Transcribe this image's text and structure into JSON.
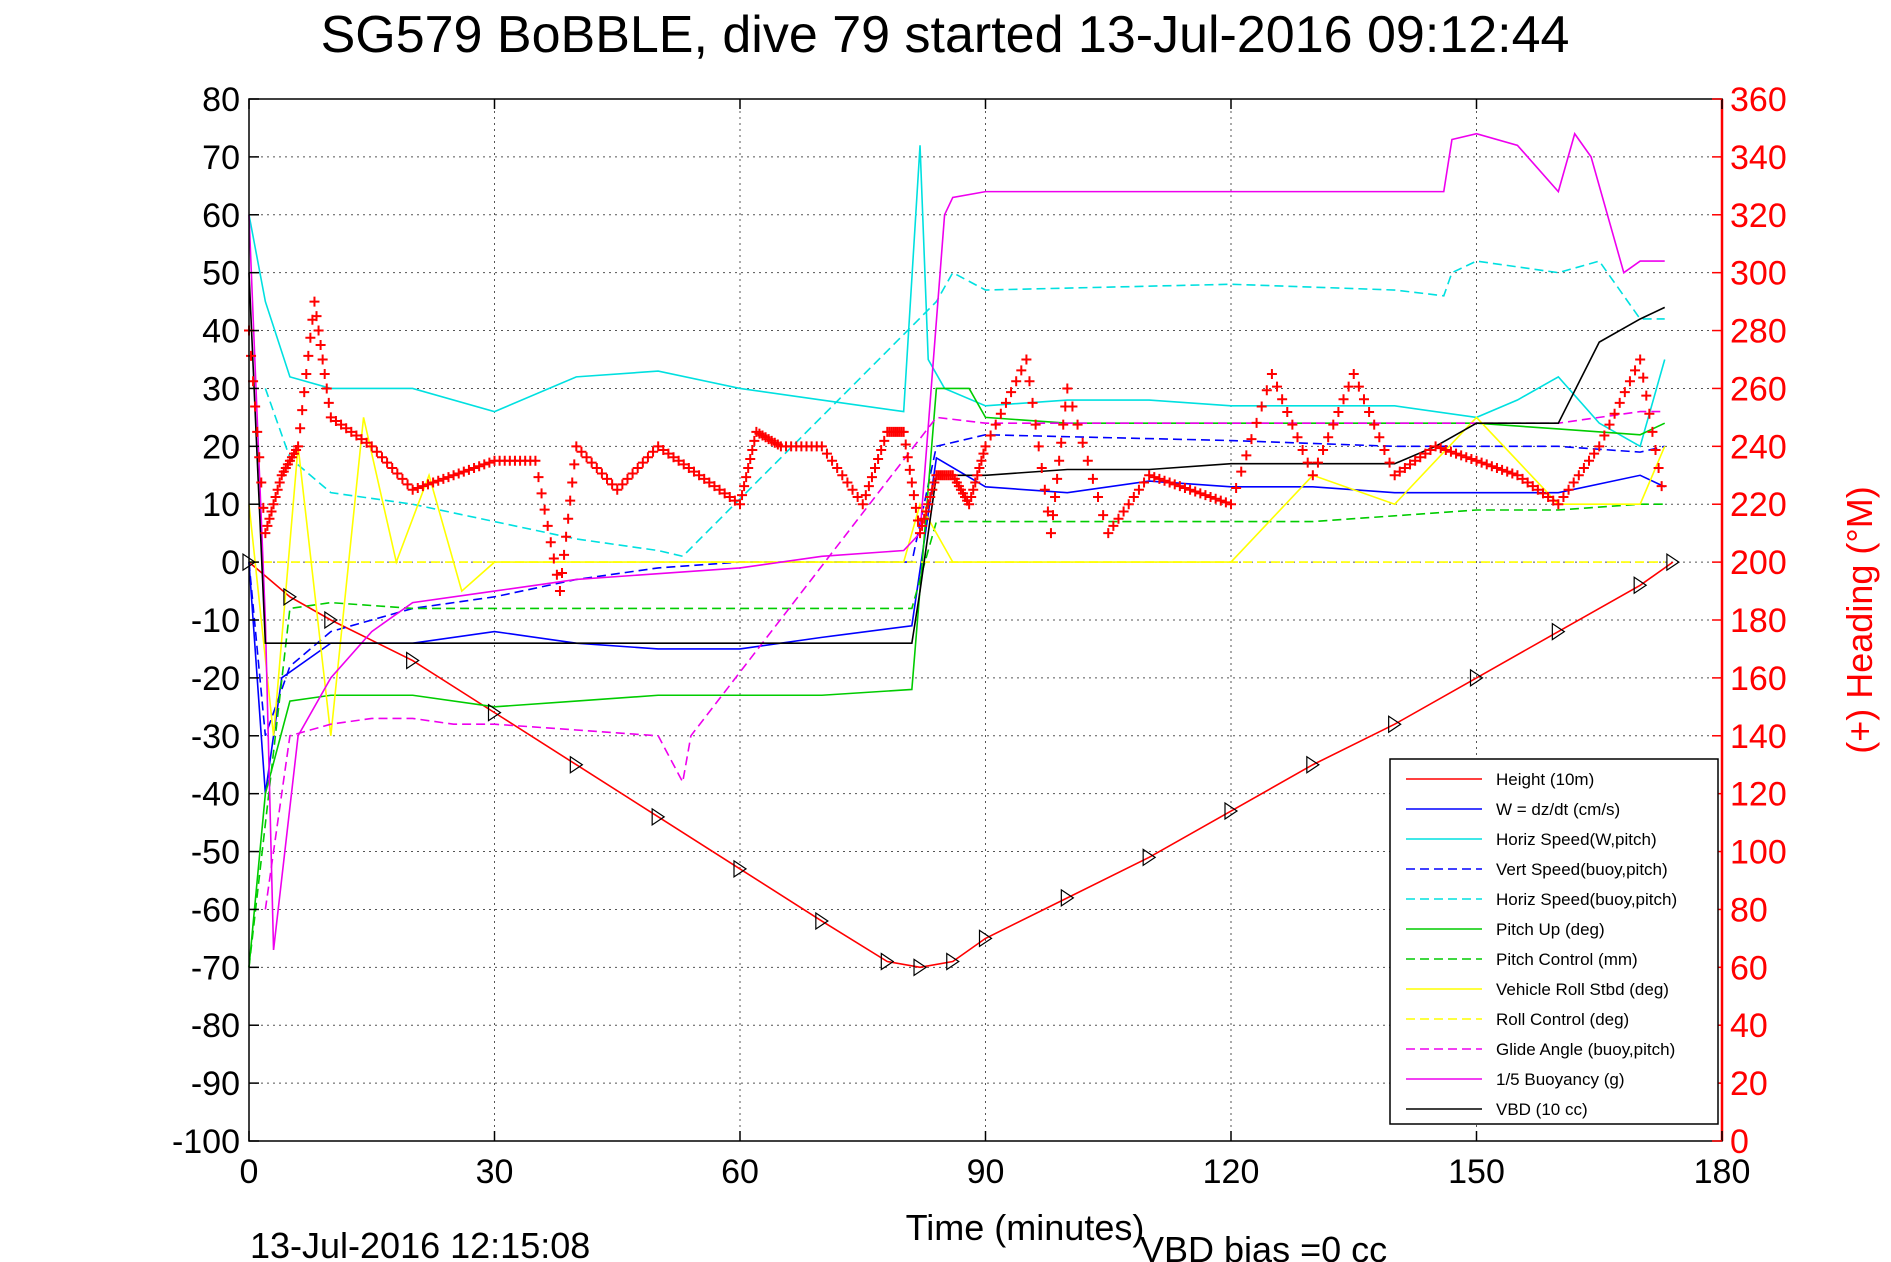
{
  "chart_data": {
    "type": "line",
    "title": "SG579 BoBBLE, dive 79 started 13-Jul-2016 09:12:44",
    "xlabel": "Time (minutes)",
    "ylabel_right": "(+) Heading (°M)",
    "xlim": [
      0,
      180
    ],
    "ylim": [
      -100,
      80
    ],
    "ylim_right": [
      0,
      360
    ],
    "x_ticks": [
      "0",
      "30",
      "60",
      "90",
      "120",
      "150",
      "180"
    ],
    "y_ticks": [
      "80",
      "70",
      "60",
      "50",
      "40",
      "30",
      "20",
      "10",
      "0",
      "-10",
      "-20",
      "-30",
      "-40",
      "-50",
      "-60",
      "-70",
      "-80",
      "-90",
      "-100"
    ],
    "y_ticks_right": [
      "360",
      "340",
      "320",
      "300",
      "280",
      "260",
      "240",
      "220",
      "200",
      "180",
      "160",
      "140",
      "120",
      "100",
      "80",
      "60",
      "40",
      "20",
      "0"
    ],
    "grid": true,
    "legend_position": "bottom-right",
    "footer_left": "13-Jul-2016 12:15:08",
    "footer_right": "VBD bias =0 cc",
    "series": [
      {
        "name": "Height (10m)",
        "color": "#ff0000",
        "style": "solid",
        "x": [
          0,
          5,
          10,
          20,
          30,
          40,
          50,
          60,
          70,
          78,
          82,
          86,
          90,
          100,
          110,
          120,
          130,
          140,
          150,
          160,
          170,
          174
        ],
        "y": [
          0,
          -6,
          -10,
          -17,
          -26,
          -35,
          -44,
          -53,
          -62,
          -69,
          -70,
          -69,
          -65,
          -58,
          -51,
          -43,
          -35,
          -28,
          -20,
          -12,
          -4,
          0
        ]
      },
      {
        "name": "W = dz/dt (cm/s)",
        "color": "#0000ff",
        "style": "solid",
        "x": [
          0,
          2,
          4,
          10,
          20,
          30,
          40,
          50,
          60,
          70,
          81,
          84,
          90,
          100,
          110,
          120,
          130,
          140,
          150,
          160,
          170,
          173
        ],
        "y": [
          0,
          -40,
          -20,
          -14,
          -14,
          -12,
          -14,
          -15,
          -15,
          -13,
          -11,
          18,
          13,
          12,
          14,
          13,
          13,
          12,
          12,
          12,
          15,
          13
        ]
      },
      {
        "name": "Horiz Speed(W,pitch)",
        "color": "#00e0e0",
        "style": "solid",
        "x": [
          0,
          2,
          5,
          10,
          20,
          30,
          40,
          50,
          60,
          70,
          80,
          82,
          83,
          85,
          90,
          100,
          110,
          120,
          130,
          140,
          150,
          155,
          160,
          165,
          170,
          173
        ],
        "y": [
          60,
          45,
          32,
          30,
          30,
          26,
          32,
          33,
          30,
          28,
          26,
          72,
          35,
          30,
          27,
          28,
          28,
          27,
          27,
          27,
          25,
          28,
          32,
          24,
          20,
          35
        ]
      },
      {
        "name": "Vert Speed(buoy,pitch)",
        "color": "#0000ff",
        "style": "dashed",
        "x": [
          0,
          2,
          5,
          10,
          20,
          30,
          40,
          50,
          60,
          70,
          81,
          84,
          90,
          120,
          140,
          150,
          160,
          170,
          173
        ],
        "y": [
          0,
          -30,
          -18,
          -12,
          -8,
          -6,
          -3,
          -1,
          0,
          0,
          0,
          20,
          22,
          21,
          20,
          20,
          20,
          19,
          20
        ]
      },
      {
        "name": "Horiz Speed(buoy,pitch)",
        "color": "#00e0e0",
        "style": "dashed",
        "x": [
          2,
          5,
          10,
          20,
          30,
          40,
          50,
          53,
          84,
          86,
          90,
          120,
          140,
          146,
          147,
          150,
          160,
          165,
          170,
          173
        ],
        "y": [
          30,
          18,
          12,
          10,
          7,
          4,
          2,
          1,
          45,
          50,
          47,
          48,
          47,
          46,
          50,
          52,
          50,
          52,
          42,
          42
        ]
      },
      {
        "name": "Pitch Up (deg)",
        "color": "#00cc00",
        "style": "solid",
        "x": [
          0,
          2,
          5,
          10,
          20,
          30,
          40,
          50,
          60,
          70,
          81,
          84,
          88,
          90,
          100,
          110,
          120,
          130,
          140,
          150,
          160,
          170,
          173
        ],
        "y": [
          -70,
          -40,
          -24,
          -23,
          -23,
          -25,
          -24,
          -23,
          -23,
          -23,
          -22,
          30,
          30,
          25,
          24,
          24,
          24,
          24,
          24,
          24,
          23,
          22,
          24
        ]
      },
      {
        "name": "Pitch Control (mm)",
        "color": "#00cc00",
        "style": "dashed",
        "x": [
          0,
          5,
          10,
          20,
          30,
          40,
          50,
          60,
          70,
          81,
          84,
          90,
          100,
          120,
          130,
          140,
          150,
          160,
          170,
          173
        ],
        "y": [
          -70,
          -8,
          -7,
          -8,
          -8,
          -8,
          -8,
          -8,
          -8,
          -8,
          7,
          7,
          7,
          7,
          7,
          8,
          9,
          9,
          10,
          10
        ]
      },
      {
        "name": "Vehicle Roll Stbd (deg)",
        "color": "#ffff00",
        "style": "solid",
        "x": [
          0,
          3,
          6,
          10,
          14,
          18,
          22,
          26,
          30,
          40,
          50,
          60,
          70,
          80,
          82,
          86,
          90,
          100,
          110,
          120,
          130,
          140,
          150,
          160,
          170,
          173
        ],
        "y": [
          10,
          -30,
          20,
          -30,
          25,
          0,
          15,
          -5,
          0,
          0,
          0,
          0,
          0,
          0,
          10,
          0,
          0,
          0,
          0,
          0,
          15,
          10,
          25,
          10,
          10,
          20
        ]
      },
      {
        "name": "Roll Control (deg)",
        "color": "#ffff00",
        "style": "dashed",
        "x": [
          0,
          5,
          10,
          20,
          30,
          40,
          50,
          60,
          70,
          80,
          90,
          100,
          110,
          120,
          130,
          140,
          150,
          160,
          170,
          173
        ],
        "y": [
          0,
          0,
          0,
          0,
          0,
          0,
          0,
          0,
          0,
          0,
          0,
          0,
          0,
          0,
          0,
          0,
          0,
          0,
          0,
          0
        ]
      },
      {
        "name": "Glide Angle (buoy,pitch)",
        "color": "#ee00ee",
        "style": "dashed",
        "x": [
          2,
          5,
          10,
          15,
          20,
          25,
          30,
          40,
          50,
          53,
          54,
          84,
          90,
          100,
          120,
          140,
          150,
          160,
          170,
          173
        ],
        "y": [
          -60,
          -30,
          -28,
          -27,
          -27,
          -28,
          -28,
          -29,
          -30,
          -38,
          -30,
          25,
          24,
          24,
          24,
          24,
          24,
          24,
          26,
          26
        ]
      },
      {
        "name": "1/5 Buoyancy (g)",
        "color": "#ee00ee",
        "style": "solid",
        "x": [
          0,
          2,
          3,
          6,
          10,
          15,
          20,
          30,
          40,
          50,
          60,
          70,
          80,
          82,
          85,
          86,
          90,
          100,
          110,
          120,
          130,
          140,
          146,
          147,
          150,
          155,
          160,
          162,
          164,
          168,
          170,
          173
        ],
        "y": [
          60,
          -10,
          -67,
          -30,
          -20,
          -12,
          -7,
          -5,
          -3,
          -2,
          -1,
          1,
          2,
          5,
          60,
          63,
          64,
          64,
          64,
          64,
          64,
          64,
          64,
          73,
          74,
          72,
          64,
          74,
          70,
          50,
          52,
          52
        ]
      },
      {
        "name": "VBD (10 cc)",
        "color": "#000000",
        "style": "solid",
        "x": [
          0,
          2,
          3,
          10,
          20,
          30,
          40,
          50,
          60,
          70,
          81,
          82,
          84,
          88,
          90,
          100,
          110,
          120,
          130,
          140,
          145,
          150,
          160,
          165,
          170,
          173
        ],
        "y": [
          50,
          -14,
          -14,
          -14,
          -14,
          -14,
          -14,
          -14,
          -14,
          -14,
          -14,
          -5,
          15,
          15,
          15,
          16,
          16,
          17,
          17,
          17,
          20,
          24,
          24,
          38,
          42,
          44
        ]
      },
      {
        "name": "Heading (°M)",
        "color": "#ff0000",
        "style": "markers",
        "axis": "right",
        "x": [
          0,
          2,
          4,
          6,
          8,
          10,
          15,
          20,
          25,
          30,
          35,
          38,
          40,
          45,
          50,
          55,
          60,
          62,
          65,
          70,
          75,
          78,
          80,
          82,
          84,
          86,
          88,
          90,
          95,
          98,
          100,
          105,
          110,
          115,
          120,
          125,
          130,
          135,
          140,
          145,
          150,
          155,
          160,
          165,
          170,
          173
        ],
        "y": [
          280,
          210,
          230,
          240,
          290,
          250,
          240,
          225,
          230,
          235,
          235,
          190,
          240,
          225,
          240,
          230,
          220,
          245,
          240,
          240,
          220,
          245,
          245,
          210,
          230,
          230,
          220,
          240,
          270,
          210,
          260,
          210,
          230,
          225,
          220,
          265,
          230,
          265,
          230,
          240,
          235,
          230,
          220,
          240,
          270,
          220
        ]
      }
    ]
  }
}
